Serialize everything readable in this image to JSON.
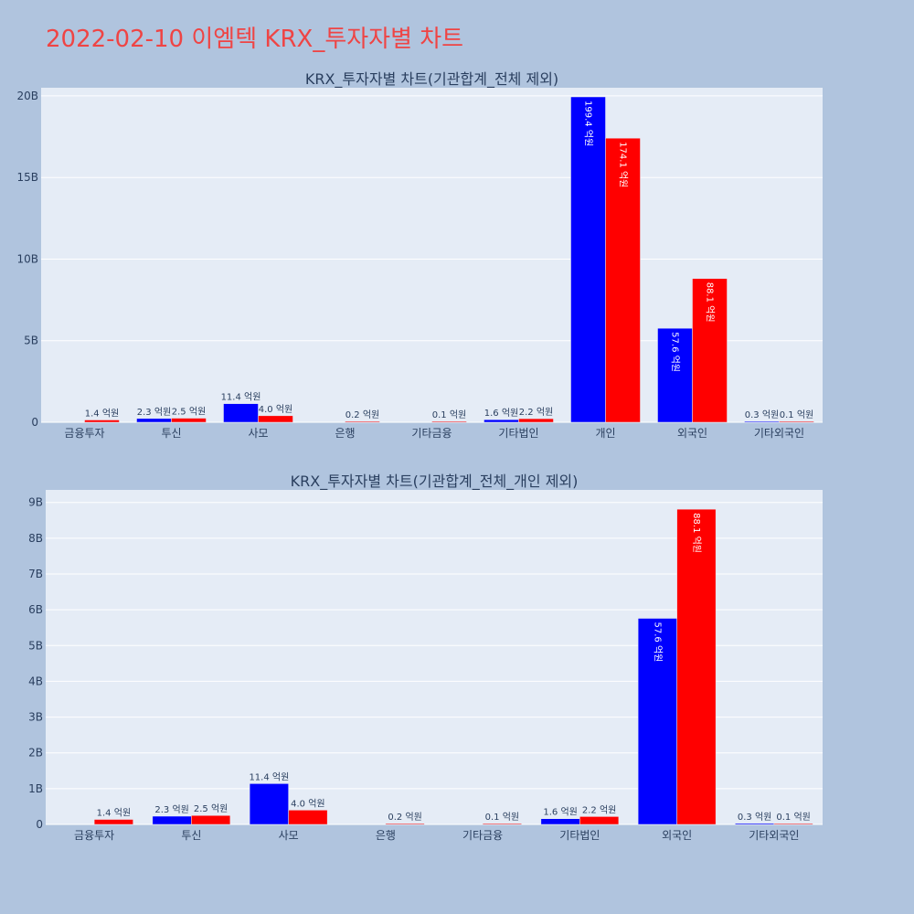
{
  "title": "2022-02-10 이엠텍 KRX_투자자별 차트",
  "colors": {
    "buy": "#0000ff",
    "sell": "#ff0000",
    "plot_bg": "#e5ecf6",
    "page_bg": "#b0c4de",
    "title": "#ef4444"
  },
  "chart_data": [
    {
      "type": "bar",
      "title": "KRX_투자자별 차트(기관합계_전체 제외)",
      "categories": [
        "금융투자",
        "투신",
        "사모",
        "은행",
        "기타금융",
        "기타법인",
        "개인",
        "외국인",
        "기타외국인"
      ],
      "series": [
        {
          "values": [
            0,
            0.23,
            1.14,
            0,
            0,
            0.16,
            19.94,
            5.76,
            0.03
          ],
          "labels": [
            "",
            "2.3 억원",
            "11.4 억원",
            "",
            "",
            "1.6 억원",
            "199.4 억원",
            "57.6 억원",
            "0.3 억원"
          ]
        },
        {
          "values": [
            0.14,
            0.25,
            0.4,
            0.02,
            0.01,
            0.22,
            17.41,
            8.81,
            0.01
          ],
          "labels": [
            "1.4 억원",
            "2.5 억원",
            "4.0 억원",
            "0.2 억원",
            "0.1 억원",
            "2.2 억원",
            "174.1 억원",
            "88.1 억원",
            "0.1 억원"
          ]
        }
      ],
      "yticks": [
        0,
        5,
        10,
        15,
        20
      ],
      "ytick_labels": [
        "0",
        "5B",
        "10B",
        "15B",
        "20B"
      ],
      "ylim": [
        0,
        20.5
      ]
    },
    {
      "type": "bar",
      "title": "KRX_투자자별 차트(기관합계_전체_개인 제외)",
      "categories": [
        "금융투자",
        "투신",
        "사모",
        "은행",
        "기타금융",
        "기타법인",
        "외국인",
        "기타외국인"
      ],
      "series": [
        {
          "values": [
            0,
            0.23,
            1.14,
            0,
            0,
            0.16,
            5.76,
            0.03
          ],
          "labels": [
            "",
            "2.3 억원",
            "11.4 억원",
            "",
            "",
            "1.6 억원",
            "57.6 억원",
            "0.3 억원"
          ]
        },
        {
          "values": [
            0.14,
            0.25,
            0.4,
            0.02,
            0.01,
            0.22,
            8.81,
            0.01
          ],
          "labels": [
            "1.4 억원",
            "2.5 억원",
            "4.0 억원",
            "0.2 억원",
            "0.1 억원",
            "2.2 억원",
            "88.1 억원",
            "0.1 억원"
          ]
        }
      ],
      "yticks": [
        0,
        1,
        2,
        3,
        4,
        5,
        6,
        7,
        8,
        9
      ],
      "ytick_labels": [
        "0",
        "1B",
        "2B",
        "3B",
        "4B",
        "5B",
        "6B",
        "7B",
        "8B",
        "9B"
      ],
      "ylim": [
        0,
        9.35
      ]
    }
  ]
}
